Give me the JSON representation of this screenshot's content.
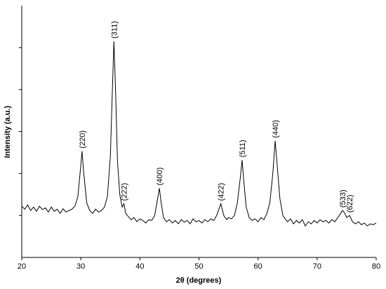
{
  "chart_data": {
    "type": "line",
    "xlabel": "2θ (degrees)",
    "ylabel": "Intensity (a.u.)",
    "color": "#000000",
    "x": [
      20,
      20.5,
      21,
      21.5,
      22,
      22.5,
      23,
      23.5,
      24,
      24.5,
      25,
      25.5,
      26,
      26.5,
      27,
      27.5,
      28,
      28.5,
      29,
      29.5,
      30,
      30.2,
      30.5,
      31,
      31.5,
      32,
      32.5,
      33,
      33.5,
      34,
      34.5,
      35,
      35.3,
      35.6,
      35.9,
      36.2,
      36.6,
      37,
      37.3,
      37.6,
      38,
      38.5,
      39,
      39.5,
      40,
      40.5,
      41,
      41.5,
      42,
      42.5,
      43,
      43.3,
      43.6,
      44,
      44.5,
      45,
      45.5,
      46,
      46.5,
      47,
      47.5,
      48,
      48.5,
      49,
      49.5,
      50,
      50.5,
      51,
      51.5,
      52,
      52.5,
      53,
      53.7,
      54.2,
      54.7,
      55,
      55.5,
      56,
      56.5,
      57,
      57.3,
      57.6,
      58,
      58.5,
      59,
      59.5,
      60,
      60.5,
      61,
      61.5,
      62,
      62.5,
      62.9,
      63.3,
      63.7,
      64.2,
      64.7,
      65,
      65.5,
      66,
      66.5,
      67,
      67.5,
      68,
      68.5,
      69,
      69.5,
      70,
      70.5,
      71,
      71.5,
      72,
      72.5,
      73,
      73.5,
      74,
      74.3,
      74.7,
      75,
      75.5,
      76,
      76.5,
      77,
      77.5,
      78,
      78.5,
      79,
      79.5,
      80
    ],
    "values": [
      1.22,
      1.15,
      1.25,
      1.12,
      1.2,
      1.1,
      1.22,
      1.14,
      1.18,
      1.08,
      1.2,
      1.1,
      1.15,
      1.05,
      1.16,
      1.08,
      1.12,
      1.15,
      1.22,
      1.45,
      2.2,
      2.53,
      2.0,
      1.3,
      1.12,
      1.05,
      1.15,
      1.08,
      1.12,
      1.2,
      1.45,
      2.4,
      3.8,
      5.15,
      3.9,
      2.3,
      1.5,
      1.2,
      1.28,
      1.05,
      0.98,
      0.9,
      0.95,
      0.85,
      0.92,
      0.88,
      0.82,
      0.9,
      0.88,
      1.0,
      1.4,
      1.65,
      1.3,
      0.95,
      0.85,
      0.9,
      0.82,
      0.88,
      0.8,
      0.9,
      0.84,
      0.88,
      0.8,
      0.92,
      0.85,
      0.88,
      0.82,
      0.9,
      0.85,
      0.92,
      0.88,
      1.0,
      1.28,
      1.0,
      0.9,
      0.95,
      0.92,
      1.0,
      1.3,
      1.9,
      2.32,
      1.8,
      1.2,
      0.95,
      0.88,
      0.92,
      0.85,
      0.95,
      0.9,
      1.05,
      1.3,
      2.0,
      2.78,
      2.1,
      1.4,
      1.0,
      0.9,
      0.85,
      0.92,
      0.8,
      0.88,
      0.82,
      0.9,
      0.75,
      0.85,
      0.8,
      0.88,
      0.82,
      0.9,
      0.85,
      0.88,
      0.82,
      0.9,
      0.85,
      0.95,
      1.05,
      1.12,
      1.05,
      0.95,
      1.0,
      0.85,
      0.8,
      0.85,
      0.78,
      0.82,
      0.75,
      0.8,
      0.78,
      0.82
    ],
    "xlim": [
      20,
      80
    ],
    "xticks": [
      20,
      30,
      40,
      50,
      60,
      70,
      80
    ],
    "ylim": [
      0,
      6
    ],
    "yticks": [
      1,
      2,
      3,
      4,
      5
    ],
    "annotations": [
      {
        "label": "(220)",
        "x": 30.2
      },
      {
        "label": "(311)",
        "x": 35.6
      },
      {
        "label": "(222)",
        "x": 37.3
      },
      {
        "label": "(400)",
        "x": 43.3
      },
      {
        "label": "(422)",
        "x": 53.7
      },
      {
        "label": "(511)",
        "x": 57.3
      },
      {
        "label": "(440)",
        "x": 62.9
      },
      {
        "label": "(533)",
        "x": 74.3
      },
      {
        "label": "(622)",
        "x": 75.5
      }
    ]
  }
}
